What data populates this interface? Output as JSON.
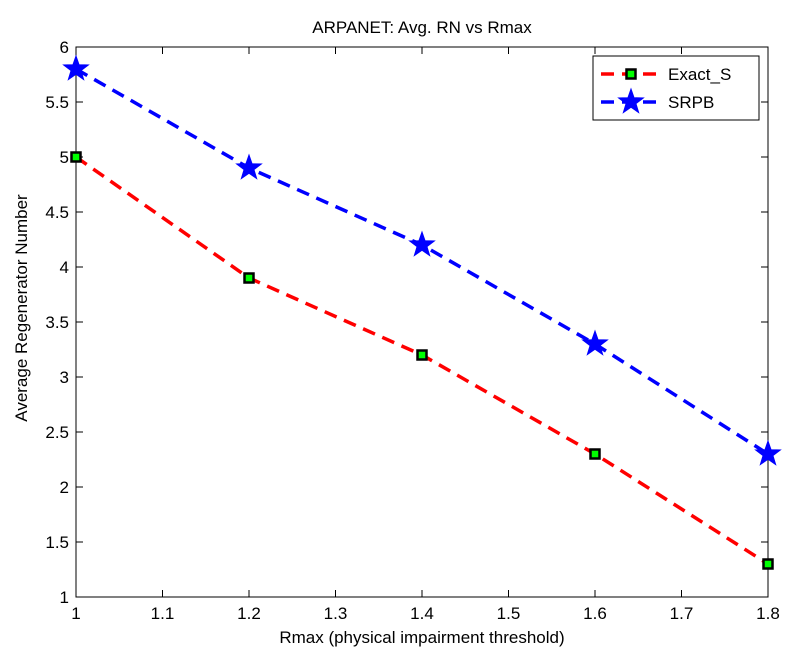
{
  "chart_data": {
    "type": "line",
    "title": "ARPANET: Avg. RN vs Rmax",
    "xlabel": "Rmax (physical impairment threshold)",
    "ylabel": "Average Regenerator Number",
    "xlim": [
      1,
      1.8
    ],
    "ylim": [
      1,
      6
    ],
    "x_ticks": [
      "1",
      "1.1",
      "1.2",
      "1.3",
      "1.4",
      "1.5",
      "1.6",
      "1.7",
      "1.8"
    ],
    "y_ticks": [
      "1",
      "1.5",
      "2",
      "2.5",
      "3",
      "3.5",
      "4",
      "4.5",
      "5",
      "5.5",
      "6"
    ],
    "grid": false,
    "legend_position": "top-right",
    "x": [
      1.0,
      1.2,
      1.4,
      1.6,
      1.8
    ],
    "series": [
      {
        "name": "Exact_S",
        "values": [
          5.0,
          3.9,
          3.2,
          2.3,
          1.3
        ],
        "line_color": "#ff0000",
        "line_style": "dashed",
        "marker": "square",
        "marker_edge_color": "#000000",
        "marker_face_color": "#00ff00"
      },
      {
        "name": "SRPB",
        "values": [
          5.8,
          4.9,
          4.2,
          3.3,
          2.3
        ],
        "line_color": "#0000ff",
        "line_style": "dashed",
        "marker": "star",
        "marker_edge_color": "#0000ff",
        "marker_face_color": "#0000ff"
      }
    ]
  }
}
